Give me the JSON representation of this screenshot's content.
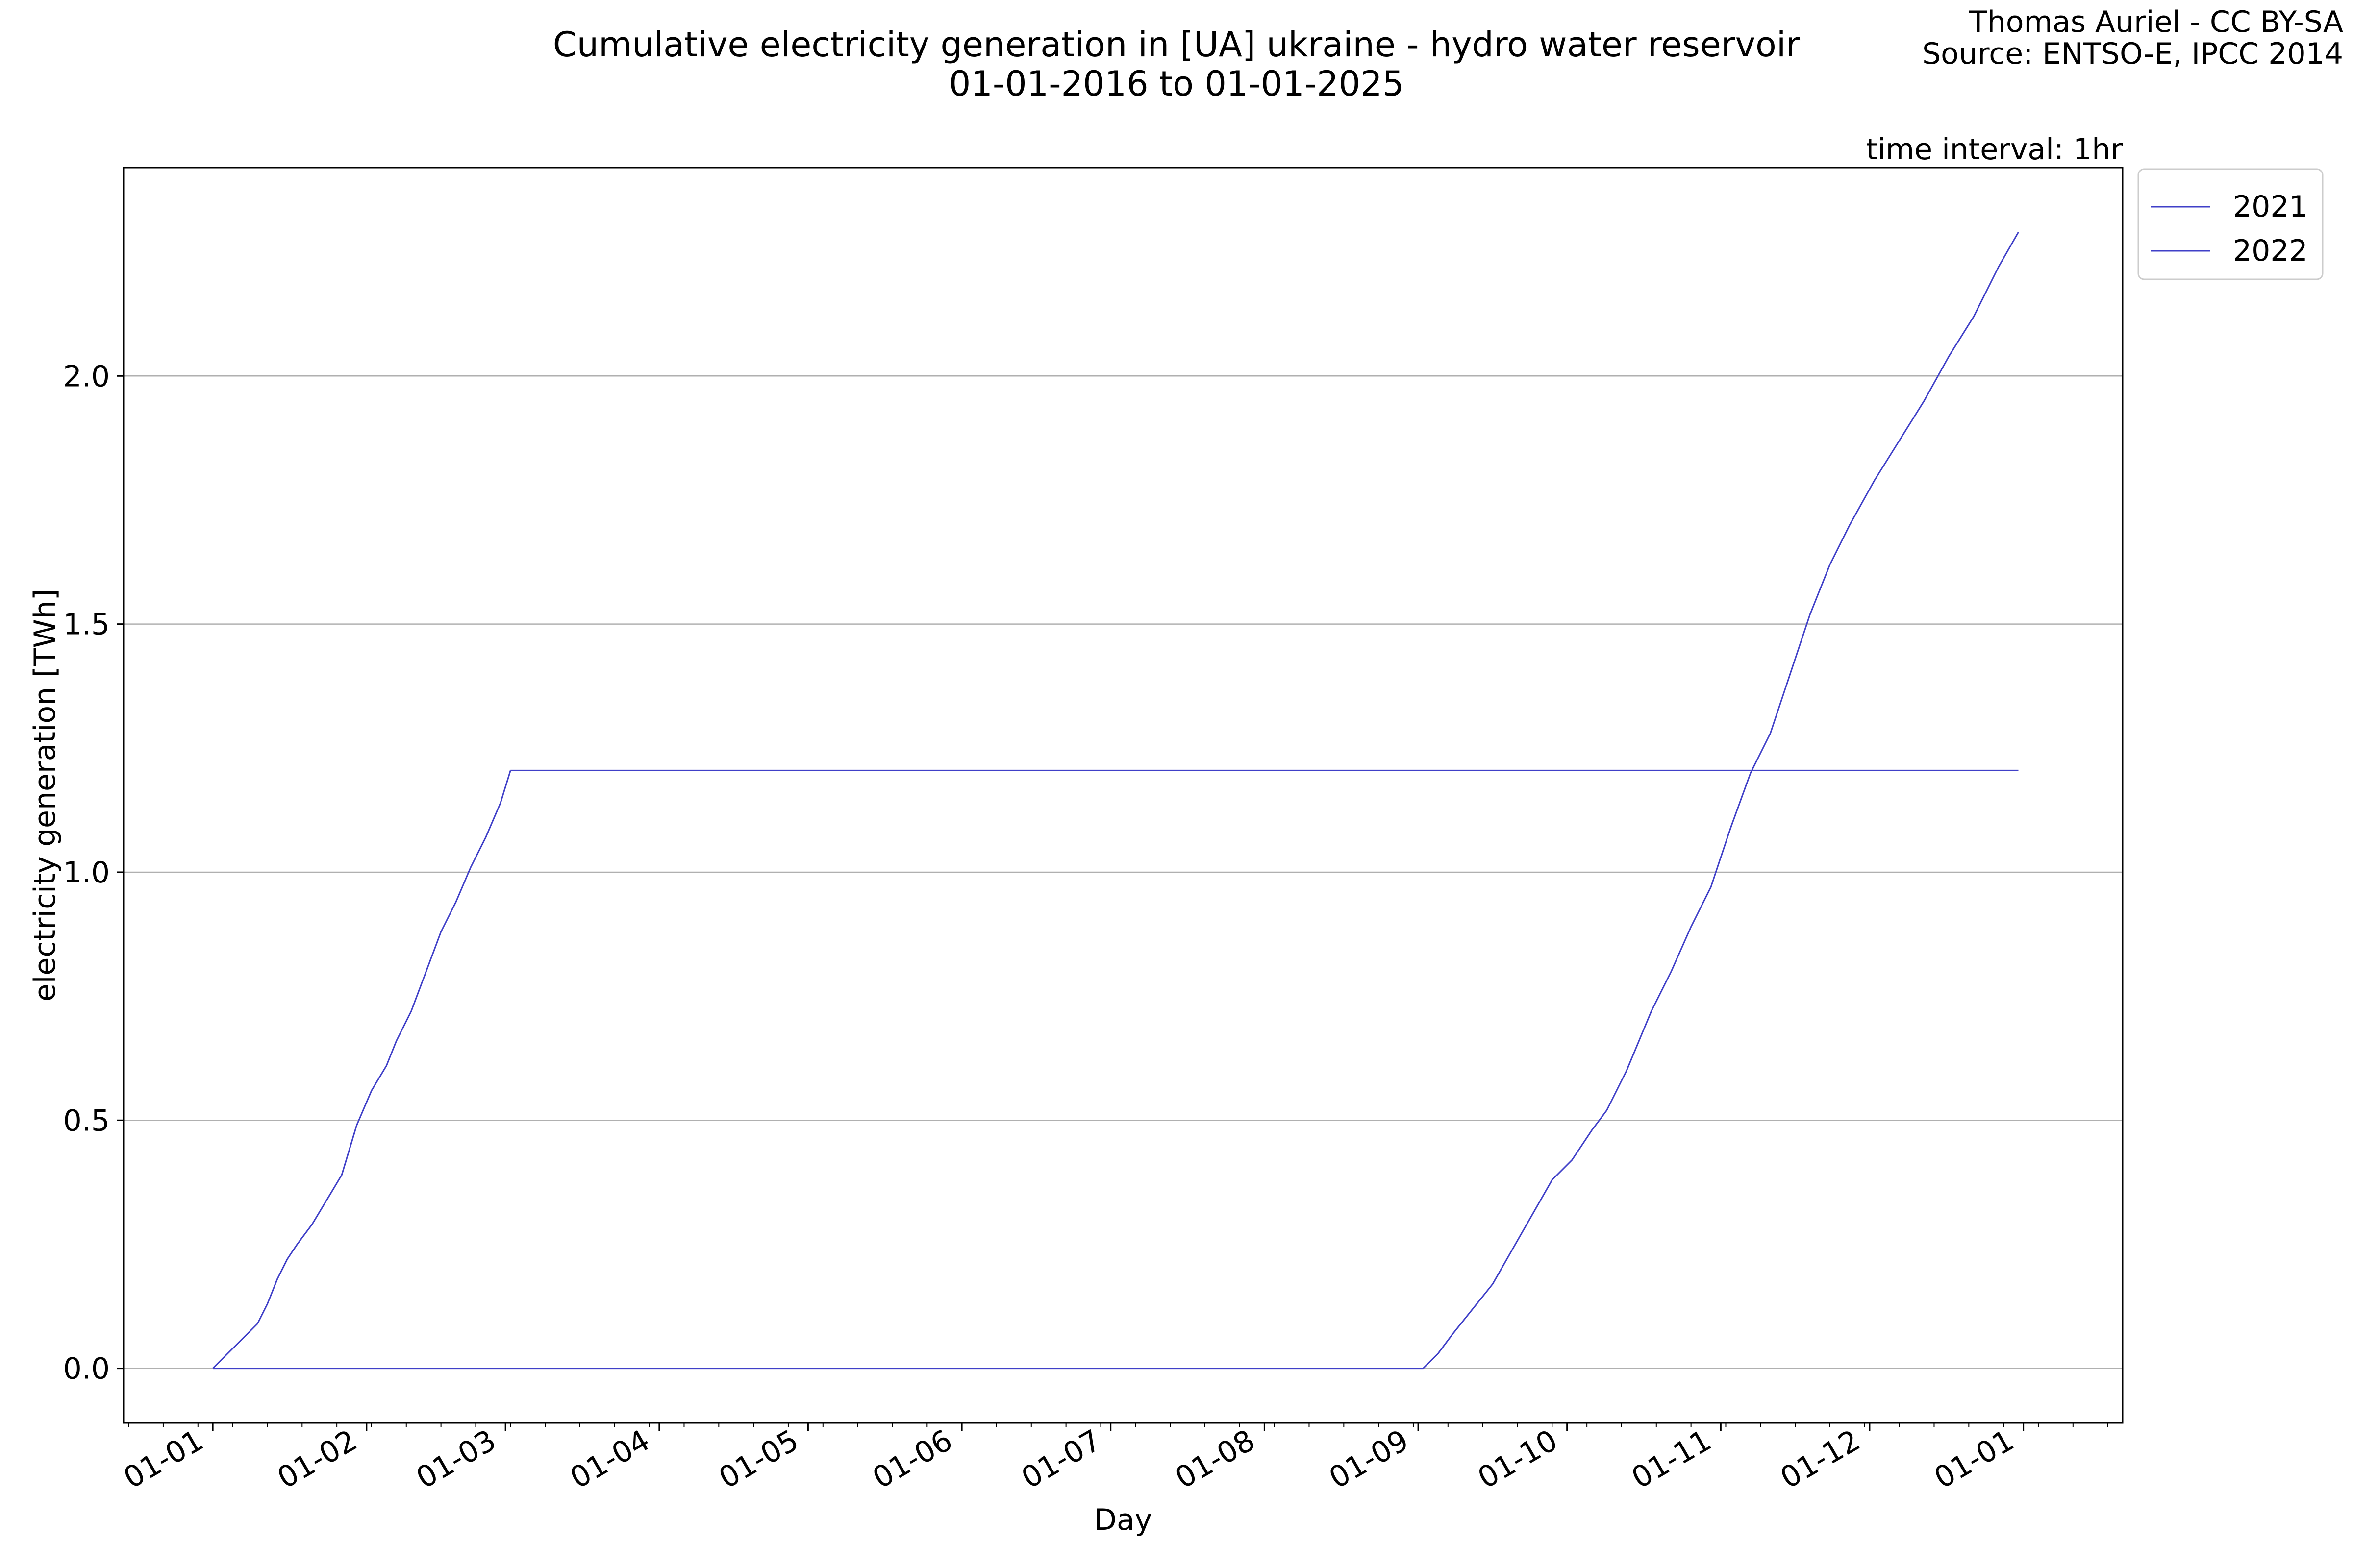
{
  "chart_data": {
    "type": "line",
    "title": "Cumulative electricity generation in [UA] ukraine - hydro water reservoir",
    "subtitle": "01-01-2016 to 01-01-2025",
    "credit": "Thomas Auriel - CC BY-SA",
    "source": "Source: ENTSO-E, IPCC 2014",
    "annotation": "time interval: 1hr",
    "xlabel": "Day",
    "ylabel": "electricity generation [TWh]",
    "x_tick_labels": [
      "01-01",
      "01-02",
      "01-03",
      "01-04",
      "01-05",
      "01-06",
      "01-07",
      "01-08",
      "01-09",
      "01-10",
      "01-11",
      "01-12",
      "01-01"
    ],
    "y_ticks": [
      0.0,
      0.5,
      1.0,
      1.5,
      2.0
    ],
    "y_tick_labels": [
      "0.0",
      "0.5",
      "1.0",
      "1.5",
      "2.0"
    ],
    "ylim": [
      -0.11,
      2.42
    ],
    "xlim_days": [
      -18,
      385
    ],
    "grid": "horizontal",
    "legend_position": "outside top-right",
    "series": [
      {
        "name": "2021",
        "color": "#4040c8",
        "x_days": [
          0,
          3,
          6,
          9,
          11,
          13,
          15,
          17,
          20,
          23,
          26,
          29,
          32,
          35,
          37,
          40,
          43,
          46,
          49,
          52,
          55,
          58,
          60
        ],
        "values": [
          0.0,
          0.03,
          0.06,
          0.09,
          0.13,
          0.18,
          0.22,
          0.25,
          0.29,
          0.34,
          0.39,
          0.49,
          0.56,
          0.61,
          0.66,
          0.72,
          0.8,
          0.88,
          0.94,
          1.01,
          1.07,
          1.14,
          1.205
        ]
      },
      {
        "name": "2022",
        "color": "#4040c8",
        "x_days": [
          0,
          60,
          244,
          247,
          250,
          254,
          258,
          262,
          266,
          270,
          274,
          278,
          281,
          285,
          290,
          294,
          298,
          302,
          306,
          310,
          314,
          318,
          322,
          326,
          330,
          335,
          340,
          345,
          350,
          355,
          360,
          364
        ],
        "values": [
          0.0,
          0.0,
          0.0,
          0.03,
          0.07,
          0.12,
          0.17,
          0.24,
          0.31,
          0.38,
          0.42,
          0.48,
          0.52,
          0.6,
          0.72,
          0.8,
          0.89,
          0.97,
          1.09,
          1.2,
          1.28,
          1.4,
          1.52,
          1.62,
          1.7,
          1.79,
          1.87,
          1.95,
          2.04,
          2.12,
          2.22,
          2.29
        ]
      },
      {
        "name": "",
        "color": "#4040c8",
        "x_days": [
          60,
          364
        ],
        "values": [
          1.205,
          1.205
        ]
      }
    ]
  }
}
